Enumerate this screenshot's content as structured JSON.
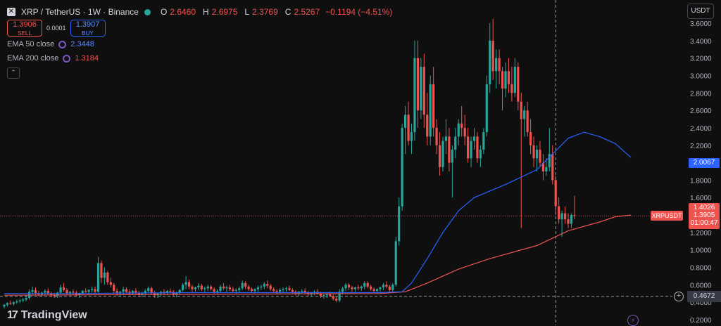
{
  "header": {
    "symbol": "XRP / TetherUS · 1W · Binance",
    "open_label": "O",
    "open": "2.6460",
    "high_label": "H",
    "high": "2.6975",
    "low_label": "L",
    "low": "2.3769",
    "close_label": "C",
    "close": "2.5267",
    "change": "−0.1194 (−4.51%)"
  },
  "trade": {
    "sell_price": "1.3906",
    "sell_label": "SELL",
    "spread": "0.0001",
    "buy_price": "1.3907",
    "buy_label": "BUY"
  },
  "indicators": [
    {
      "name": "EMA 50 close",
      "value": "2.3448",
      "color": "#2962ff"
    },
    {
      "name": "EMA 200 close",
      "value": "1.3184",
      "color": "#ef5350"
    }
  ],
  "currency": "USDT",
  "price_tags": {
    "ema50": "2.0067",
    "last_price": "1.4026",
    "price": "1.3905",
    "countdown": "01:00:47",
    "symbol": "XRPUSDT",
    "crosshair": "0.4672"
  },
  "brand": "TradingView",
  "colors": {
    "up": "#26a69a",
    "down": "#ef5350",
    "ema50": "#2962ff",
    "ema200": "#ef5350",
    "bg": "#0f0f0f"
  },
  "icons": [
    "symbol-icon",
    "status-dot-icon",
    "ema-settings-icon",
    "collapse-icon",
    "plus-icon",
    "bolt-icon",
    "tradingview-logo-icon"
  ],
  "chart_data": {
    "type": "candlestick",
    "y_ticks": [
      "3.6000",
      "3.4000",
      "3.2000",
      "3.0000",
      "2.8000",
      "2.6000",
      "2.4000",
      "2.2000",
      "2.0000",
      "1.8000",
      "1.6000",
      "1.4000",
      "1.2000",
      "1.0000",
      "0.8000",
      "0.6000",
      "0.4000",
      "0.2000"
    ],
    "ylim": [
      0.2,
      3.7
    ],
    "crosshair_price": 0.4672,
    "crosshair_index": 176,
    "last_price": 1.3905,
    "candles": [
      [
        0.35,
        0.38,
        0.33,
        0.37
      ],
      [
        0.37,
        0.4,
        0.35,
        0.39
      ],
      [
        0.39,
        0.42,
        0.37,
        0.38
      ],
      [
        0.38,
        0.41,
        0.36,
        0.4
      ],
      [
        0.4,
        0.43,
        0.38,
        0.41
      ],
      [
        0.41,
        0.44,
        0.39,
        0.42
      ],
      [
        0.42,
        0.45,
        0.4,
        0.43
      ],
      [
        0.43,
        0.48,
        0.41,
        0.45
      ],
      [
        0.45,
        0.55,
        0.43,
        0.52
      ],
      [
        0.52,
        0.58,
        0.48,
        0.54
      ],
      [
        0.54,
        0.57,
        0.48,
        0.5
      ],
      [
        0.5,
        0.53,
        0.47,
        0.49
      ],
      [
        0.49,
        0.52,
        0.46,
        0.51
      ],
      [
        0.51,
        0.55,
        0.48,
        0.53
      ],
      [
        0.53,
        0.56,
        0.49,
        0.5
      ],
      [
        0.5,
        0.52,
        0.46,
        0.48
      ],
      [
        0.48,
        0.51,
        0.45,
        0.47
      ],
      [
        0.47,
        0.52,
        0.45,
        0.51
      ],
      [
        0.51,
        0.6,
        0.49,
        0.57
      ],
      [
        0.57,
        0.62,
        0.52,
        0.54
      ],
      [
        0.54,
        0.56,
        0.48,
        0.5
      ],
      [
        0.5,
        0.53,
        0.47,
        0.52
      ],
      [
        0.52,
        0.55,
        0.49,
        0.51
      ],
      [
        0.51,
        0.53,
        0.47,
        0.48
      ],
      [
        0.48,
        0.51,
        0.45,
        0.5
      ],
      [
        0.5,
        0.54,
        0.48,
        0.53
      ],
      [
        0.53,
        0.56,
        0.5,
        0.52
      ],
      [
        0.52,
        0.55,
        0.49,
        0.54
      ],
      [
        0.54,
        0.58,
        0.51,
        0.55
      ],
      [
        0.55,
        0.58,
        0.5,
        0.52
      ],
      [
        0.52,
        0.92,
        0.51,
        0.85
      ],
      [
        0.85,
        0.88,
        0.62,
        0.68
      ],
      [
        0.68,
        0.8,
        0.6,
        0.74
      ],
      [
        0.74,
        0.76,
        0.6,
        0.63
      ],
      [
        0.63,
        0.68,
        0.57,
        0.6
      ],
      [
        0.6,
        0.62,
        0.5,
        0.53
      ],
      [
        0.53,
        0.56,
        0.47,
        0.5
      ],
      [
        0.5,
        0.53,
        0.46,
        0.52
      ],
      [
        0.52,
        0.58,
        0.49,
        0.55
      ],
      [
        0.55,
        0.57,
        0.5,
        0.52
      ],
      [
        0.52,
        0.55,
        0.48,
        0.5
      ],
      [
        0.5,
        0.54,
        0.48,
        0.53
      ],
      [
        0.53,
        0.56,
        0.49,
        0.51
      ],
      [
        0.51,
        0.53,
        0.47,
        0.49
      ],
      [
        0.49,
        0.52,
        0.46,
        0.5
      ],
      [
        0.5,
        0.55,
        0.48,
        0.53
      ],
      [
        0.53,
        0.58,
        0.51,
        0.56
      ],
      [
        0.56,
        0.58,
        0.49,
        0.51
      ],
      [
        0.51,
        0.53,
        0.45,
        0.48
      ],
      [
        0.48,
        0.51,
        0.45,
        0.5
      ],
      [
        0.5,
        0.53,
        0.47,
        0.52
      ],
      [
        0.52,
        0.55,
        0.49,
        0.51
      ],
      [
        0.51,
        0.54,
        0.48,
        0.53
      ],
      [
        0.53,
        0.56,
        0.5,
        0.52
      ],
      [
        0.52,
        0.54,
        0.47,
        0.49
      ],
      [
        0.49,
        0.52,
        0.46,
        0.51
      ],
      [
        0.51,
        0.55,
        0.49,
        0.54
      ],
      [
        0.54,
        0.62,
        0.52,
        0.6
      ],
      [
        0.6,
        0.7,
        0.55,
        0.63
      ],
      [
        0.63,
        0.66,
        0.55,
        0.58
      ],
      [
        0.58,
        0.6,
        0.52,
        0.55
      ],
      [
        0.55,
        0.58,
        0.52,
        0.57
      ],
      [
        0.57,
        0.62,
        0.54,
        0.59
      ],
      [
        0.59,
        0.61,
        0.53,
        0.55
      ],
      [
        0.55,
        0.58,
        0.52,
        0.56
      ],
      [
        0.56,
        0.6,
        0.53,
        0.58
      ],
      [
        0.58,
        0.6,
        0.53,
        0.55
      ],
      [
        0.55,
        0.57,
        0.5,
        0.52
      ],
      [
        0.52,
        0.55,
        0.49,
        0.53
      ],
      [
        0.53,
        0.6,
        0.51,
        0.58
      ],
      [
        0.58,
        0.62,
        0.54,
        0.56
      ],
      [
        0.56,
        0.59,
        0.52,
        0.57
      ],
      [
        0.57,
        0.6,
        0.53,
        0.55
      ],
      [
        0.55,
        0.58,
        0.51,
        0.53
      ],
      [
        0.53,
        0.56,
        0.5,
        0.54
      ],
      [
        0.54,
        0.58,
        0.51,
        0.56
      ],
      [
        0.56,
        0.65,
        0.54,
        0.62
      ],
      [
        0.62,
        0.64,
        0.55,
        0.58
      ],
      [
        0.58,
        0.6,
        0.53,
        0.55
      ],
      [
        0.55,
        0.57,
        0.51,
        0.53
      ],
      [
        0.53,
        0.56,
        0.5,
        0.55
      ],
      [
        0.55,
        0.59,
        0.52,
        0.57
      ],
      [
        0.57,
        0.6,
        0.54,
        0.58
      ],
      [
        0.58,
        0.63,
        0.55,
        0.61
      ],
      [
        0.61,
        0.65,
        0.56,
        0.59
      ],
      [
        0.59,
        0.61,
        0.53,
        0.55
      ],
      [
        0.55,
        0.57,
        0.51,
        0.53
      ],
      [
        0.53,
        0.55,
        0.49,
        0.52
      ],
      [
        0.52,
        0.56,
        0.5,
        0.54
      ],
      [
        0.54,
        0.57,
        0.51,
        0.55
      ],
      [
        0.55,
        0.58,
        0.52,
        0.56
      ],
      [
        0.56,
        0.59,
        0.53,
        0.54
      ],
      [
        0.54,
        0.56,
        0.5,
        0.52
      ],
      [
        0.52,
        0.54,
        0.48,
        0.5
      ],
      [
        0.5,
        0.53,
        0.47,
        0.52
      ],
      [
        0.52,
        0.55,
        0.49,
        0.53
      ],
      [
        0.53,
        0.56,
        0.5,
        0.51
      ],
      [
        0.51,
        0.53,
        0.47,
        0.49
      ],
      [
        0.49,
        0.52,
        0.46,
        0.51
      ],
      [
        0.51,
        0.54,
        0.48,
        0.52
      ],
      [
        0.52,
        0.55,
        0.49,
        0.5
      ],
      [
        0.5,
        0.52,
        0.45,
        0.47
      ],
      [
        0.47,
        0.5,
        0.44,
        0.48
      ],
      [
        0.48,
        0.51,
        0.45,
        0.49
      ],
      [
        0.49,
        0.52,
        0.46,
        0.47
      ],
      [
        0.47,
        0.49,
        0.42,
        0.44
      ],
      [
        0.44,
        0.47,
        0.4,
        0.42
      ],
      [
        0.42,
        0.55,
        0.4,
        0.52
      ],
      [
        0.52,
        0.58,
        0.49,
        0.56
      ],
      [
        0.56,
        0.62,
        0.53,
        0.6
      ],
      [
        0.6,
        0.62,
        0.54,
        0.57
      ],
      [
        0.57,
        0.59,
        0.52,
        0.55
      ],
      [
        0.55,
        0.58,
        0.52,
        0.57
      ],
      [
        0.57,
        0.6,
        0.54,
        0.56
      ],
      [
        0.56,
        0.59,
        0.53,
        0.58
      ],
      [
        0.58,
        0.64,
        0.55,
        0.62
      ],
      [
        0.62,
        0.64,
        0.56,
        0.58
      ],
      [
        0.58,
        0.6,
        0.53,
        0.55
      ],
      [
        0.55,
        0.57,
        0.51,
        0.53
      ],
      [
        0.53,
        0.56,
        0.5,
        0.55
      ],
      [
        0.55,
        0.58,
        0.52,
        0.57
      ],
      [
        0.57,
        0.62,
        0.54,
        0.6
      ],
      [
        0.6,
        0.64,
        0.56,
        0.58
      ],
      [
        0.58,
        0.6,
        0.52,
        0.54
      ],
      [
        0.54,
        0.62,
        0.52,
        0.6
      ],
      [
        0.6,
        1.15,
        0.58,
        1.1
      ],
      [
        1.1,
        1.6,
        1.05,
        1.5
      ],
      [
        1.5,
        2.45,
        1.45,
        2.4
      ],
      [
        2.4,
        2.65,
        2.1,
        2.55
      ],
      [
        2.55,
        2.7,
        2.2,
        2.25
      ],
      [
        2.25,
        2.45,
        2.1,
        2.35
      ],
      [
        2.35,
        3.4,
        2.25,
        3.2
      ],
      [
        3.2,
        3.4,
        2.4,
        2.6
      ],
      [
        2.6,
        3.2,
        2.5,
        3.1
      ],
      [
        3.1,
        3.25,
        2.4,
        2.55
      ],
      [
        2.55,
        2.8,
        2.2,
        2.3
      ],
      [
        2.3,
        3.0,
        2.2,
        2.9
      ],
      [
        2.9,
        3.1,
        2.3,
        2.4
      ],
      [
        2.4,
        2.5,
        2.1,
        2.2
      ],
      [
        2.2,
        2.35,
        1.85,
        1.95
      ],
      [
        1.95,
        2.3,
        1.9,
        2.25
      ],
      [
        2.25,
        2.5,
        2.1,
        2.3
      ],
      [
        2.3,
        2.4,
        1.9,
        2.0
      ],
      [
        2.0,
        2.2,
        1.6,
        2.15
      ],
      [
        2.15,
        2.4,
        2.05,
        2.3
      ],
      [
        2.3,
        2.5,
        2.2,
        2.45
      ],
      [
        2.45,
        2.65,
        2.3,
        2.4
      ],
      [
        2.4,
        2.55,
        2.2,
        2.3
      ],
      [
        2.3,
        2.4,
        2.0,
        2.05
      ],
      [
        2.05,
        2.3,
        1.95,
        2.25
      ],
      [
        2.25,
        2.4,
        2.15,
        2.3
      ],
      [
        2.3,
        2.35,
        2.0,
        2.05
      ],
      [
        2.05,
        2.2,
        1.95,
        2.15
      ],
      [
        2.15,
        2.4,
        2.1,
        2.35
      ],
      [
        2.35,
        3.0,
        2.3,
        2.9
      ],
      [
        2.9,
        3.6,
        2.8,
        3.4
      ],
      [
        3.4,
        3.65,
        2.95,
        3.05
      ],
      [
        3.05,
        3.3,
        2.85,
        3.2
      ],
      [
        3.2,
        3.3,
        2.9,
        3.05
      ],
      [
        3.05,
        3.1,
        2.6,
        2.85
      ],
      [
        2.85,
        3.15,
        2.75,
        3.05
      ],
      [
        3.05,
        3.2,
        2.8,
        2.9
      ],
      [
        2.9,
        3.1,
        2.7,
        2.8
      ],
      [
        2.8,
        3.2,
        2.75,
        3.1
      ],
      [
        3.1,
        3.15,
        2.6,
        2.7
      ],
      [
        2.7,
        2.8,
        1.25,
        2.5
      ],
      [
        2.5,
        2.65,
        2.3,
        2.6
      ],
      [
        2.6,
        2.7,
        2.3,
        2.35
      ],
      [
        2.35,
        2.5,
        2.1,
        2.2
      ],
      [
        2.2,
        2.3,
        1.95,
        2.05
      ],
      [
        2.05,
        2.2,
        1.9,
        2.15
      ],
      [
        2.15,
        2.25,
        1.95,
        2.0
      ],
      [
        2.0,
        2.1,
        1.8,
        1.9
      ],
      [
        1.9,
        2.05,
        1.85,
        1.95
      ],
      [
        1.95,
        2.4,
        1.9,
        2.1
      ],
      [
        2.1,
        2.2,
        1.75,
        1.8
      ],
      [
        1.8,
        1.85,
        1.4,
        1.5
      ],
      [
        1.5,
        1.6,
        1.3,
        1.35
      ],
      [
        1.35,
        1.45,
        1.15,
        1.42
      ],
      [
        1.42,
        1.5,
        1.3,
        1.35
      ],
      [
        1.35,
        1.42,
        1.25,
        1.3
      ],
      [
        1.3,
        1.42,
        1.25,
        1.4
      ],
      [
        1.4,
        1.62,
        1.35,
        1.39
      ]
    ],
    "ema50": [
      [
        0,
        0.5
      ],
      [
        20,
        0.5
      ],
      [
        60,
        0.51
      ],
      [
        100,
        0.51
      ],
      [
        120,
        0.51
      ],
      [
        127,
        0.52
      ],
      [
        130,
        0.62
      ],
      [
        135,
        0.9
      ],
      [
        140,
        1.2
      ],
      [
        145,
        1.45
      ],
      [
        150,
        1.6
      ],
      [
        160,
        1.75
      ],
      [
        170,
        1.92
      ],
      [
        175,
        2.1
      ],
      [
        180,
        2.28
      ],
      [
        185,
        2.35
      ],
      [
        190,
        2.3
      ],
      [
        195,
        2.22
      ],
      [
        200,
        2.06
      ]
    ],
    "ema200": [
      [
        0,
        0.48
      ],
      [
        60,
        0.49
      ],
      [
        120,
        0.5
      ],
      [
        128,
        0.52
      ],
      [
        135,
        0.62
      ],
      [
        145,
        0.78
      ],
      [
        155,
        0.9
      ],
      [
        170,
        1.05
      ],
      [
        180,
        1.22
      ],
      [
        190,
        1.32
      ],
      [
        195,
        1.38
      ],
      [
        200,
        1.4
      ]
    ]
  }
}
